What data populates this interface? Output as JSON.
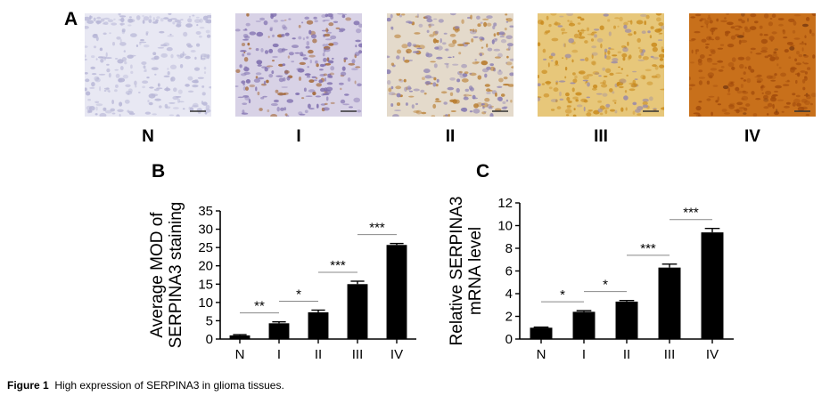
{
  "panel_labels": {
    "a": "A",
    "b": "B",
    "c": "C"
  },
  "micrographs": [
    {
      "label": "N",
      "bg": "#e8e8f3",
      "dot": "#b7b6d6",
      "brown": "#d9cfc6",
      "brown_ratio": 0.0
    },
    {
      "label": "I",
      "bg": "#d8d2e6",
      "dot": "#7f6fae",
      "brown": "#a0602a",
      "brown_ratio": 0.25
    },
    {
      "label": "II",
      "bg": "#e4dacb",
      "dot": "#8b7fb3",
      "brown": "#b77a2c",
      "brown_ratio": 0.45
    },
    {
      "label": "III",
      "bg": "#e7c77a",
      "dot": "#9a8aa8",
      "brown": "#c98a1c",
      "brown_ratio": 0.7
    },
    {
      "label": "IV",
      "bg": "#c8701b",
      "dot": "#7a3a10",
      "brown": "#a34c0c",
      "brown_ratio": 0.95
    }
  ],
  "chart_data": [
    {
      "type": "bar",
      "title": "",
      "categories": [
        "N",
        "I",
        "II",
        "III",
        "IV"
      ],
      "values": [
        1.0,
        4.3,
        7.3,
        15.0,
        25.7
      ],
      "errors": [
        0.2,
        0.4,
        0.6,
        0.8,
        0.4
      ],
      "ylabel_line1": "Average MOD of",
      "ylabel_line2": "SERPINA3 staining",
      "ylim": [
        0,
        35
      ],
      "yticks": [
        "0",
        "5",
        "10",
        "15",
        "20",
        "25",
        "30",
        "35"
      ],
      "yticks_values": [
        0,
        5,
        10,
        15,
        20,
        25,
        30,
        35
      ],
      "significance": [
        {
          "from": 0,
          "to": 1,
          "text": "**"
        },
        {
          "from": 1,
          "to": 2,
          "text": "*"
        },
        {
          "from": 2,
          "to": 3,
          "text": "***"
        },
        {
          "from": 3,
          "to": 4,
          "text": "***"
        }
      ],
      "bar_color": "#000000"
    },
    {
      "type": "bar",
      "title": "",
      "categories": [
        "N",
        "I",
        "II",
        "III",
        "IV"
      ],
      "values": [
        1.0,
        2.4,
        3.3,
        6.3,
        9.4
      ],
      "errors": [
        0.05,
        0.1,
        0.1,
        0.3,
        0.35
      ],
      "ylabel_line1": "Relative SERPINA3",
      "ylabel_line2": "mRNA level",
      "ylim": [
        0,
        12
      ],
      "yticks": [
        "0",
        "2",
        "4",
        "6",
        "8",
        "10",
        "12"
      ],
      "yticks_values": [
        0,
        2,
        4,
        6,
        8,
        10,
        12
      ],
      "significance": [
        {
          "from": 0,
          "to": 1,
          "text": "*"
        },
        {
          "from": 1,
          "to": 2,
          "text": "*"
        },
        {
          "from": 2,
          "to": 3,
          "text": "***"
        },
        {
          "from": 3,
          "to": 4,
          "text": "***"
        }
      ],
      "bar_color": "#000000"
    }
  ],
  "caption": {
    "label": "Figure 1",
    "text": "High expression of SERPINA3 in glioma tissues."
  }
}
